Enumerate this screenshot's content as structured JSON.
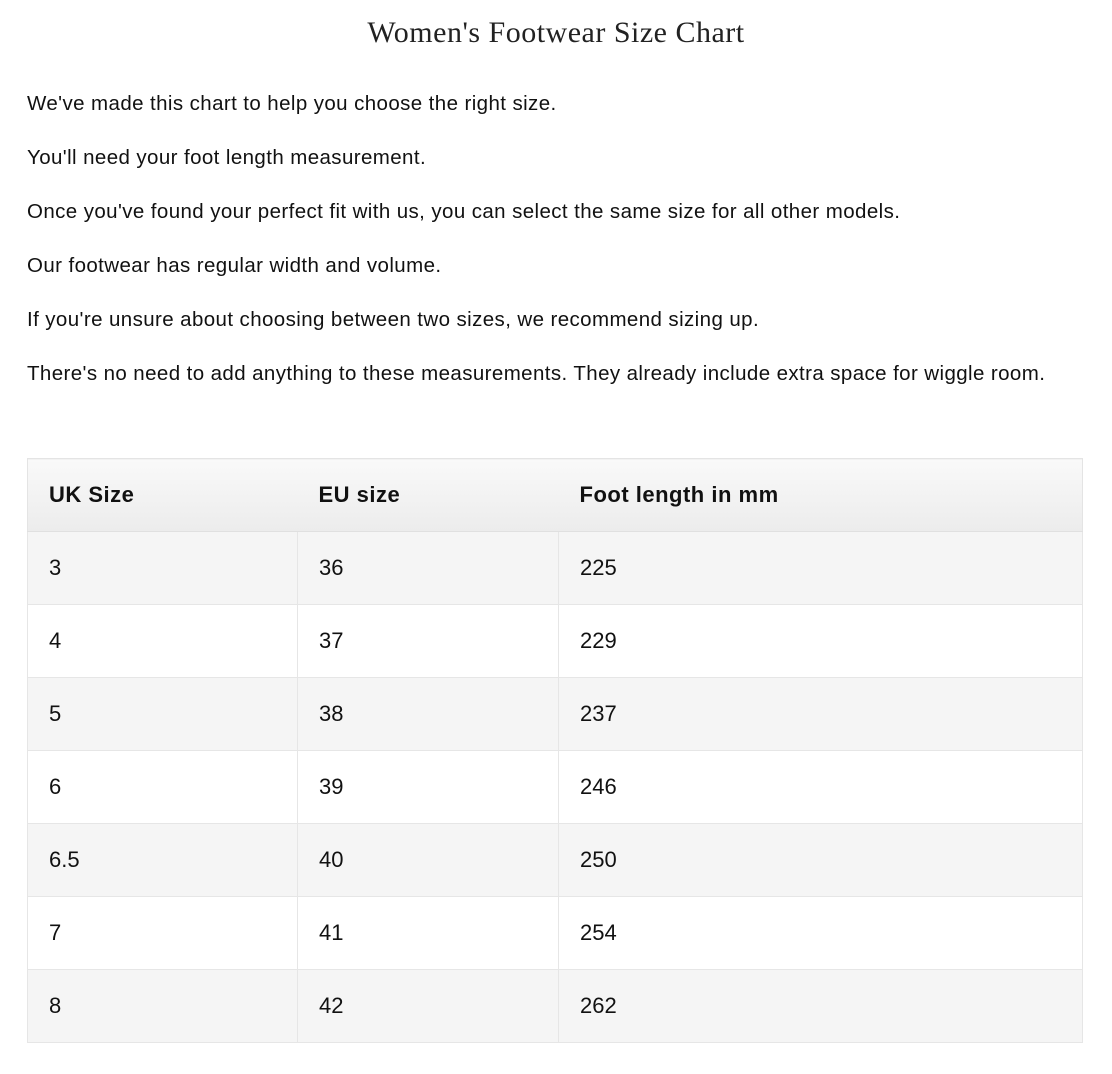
{
  "title": "Women's Footwear Size Chart",
  "intro": [
    "We've made this chart to help you choose the right size.",
    "You'll need your foot length measurement.",
    "Once you've found your perfect fit with us, you can select the same size for all other models.",
    "Our footwear has regular width and volume.",
    "If you're unsure about choosing between two sizes, we recommend sizing up.",
    "There's no need to add anything to these measurements. They already include extra space for wiggle room."
  ],
  "table": {
    "headers": [
      "UK Size",
      "EU size",
      "Foot length in mm"
    ],
    "rows": [
      [
        "3",
        "36",
        "225"
      ],
      [
        "4",
        "37",
        "229"
      ],
      [
        "5",
        "38",
        "237"
      ],
      [
        "6",
        "39",
        "246"
      ],
      [
        "6.5",
        "40",
        "250"
      ],
      [
        "7",
        "41",
        "254"
      ],
      [
        "8",
        "42",
        "262"
      ]
    ]
  }
}
